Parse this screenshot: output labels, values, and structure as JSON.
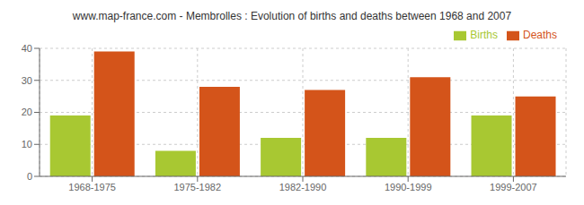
{
  "chart_data": {
    "type": "bar",
    "title": "www.map-france.com - Membrolles : Evolution of births and deaths between 1968 and 2007",
    "categories": [
      "1968-1975",
      "1975-1982",
      "1982-1990",
      "1990-1999",
      "1999-2007"
    ],
    "series": [
      {
        "name": "Births",
        "color": "#a8c832",
        "values": [
          19,
          8,
          12,
          12,
          19
        ]
      },
      {
        "name": "Deaths",
        "color": "#d4541a",
        "values": [
          39,
          28,
          27,
          31,
          25
        ]
      }
    ],
    "ylim": [
      0,
      40
    ],
    "yticks": [
      0,
      10,
      20,
      30,
      40
    ],
    "grid": true,
    "legend": "upper right"
  }
}
